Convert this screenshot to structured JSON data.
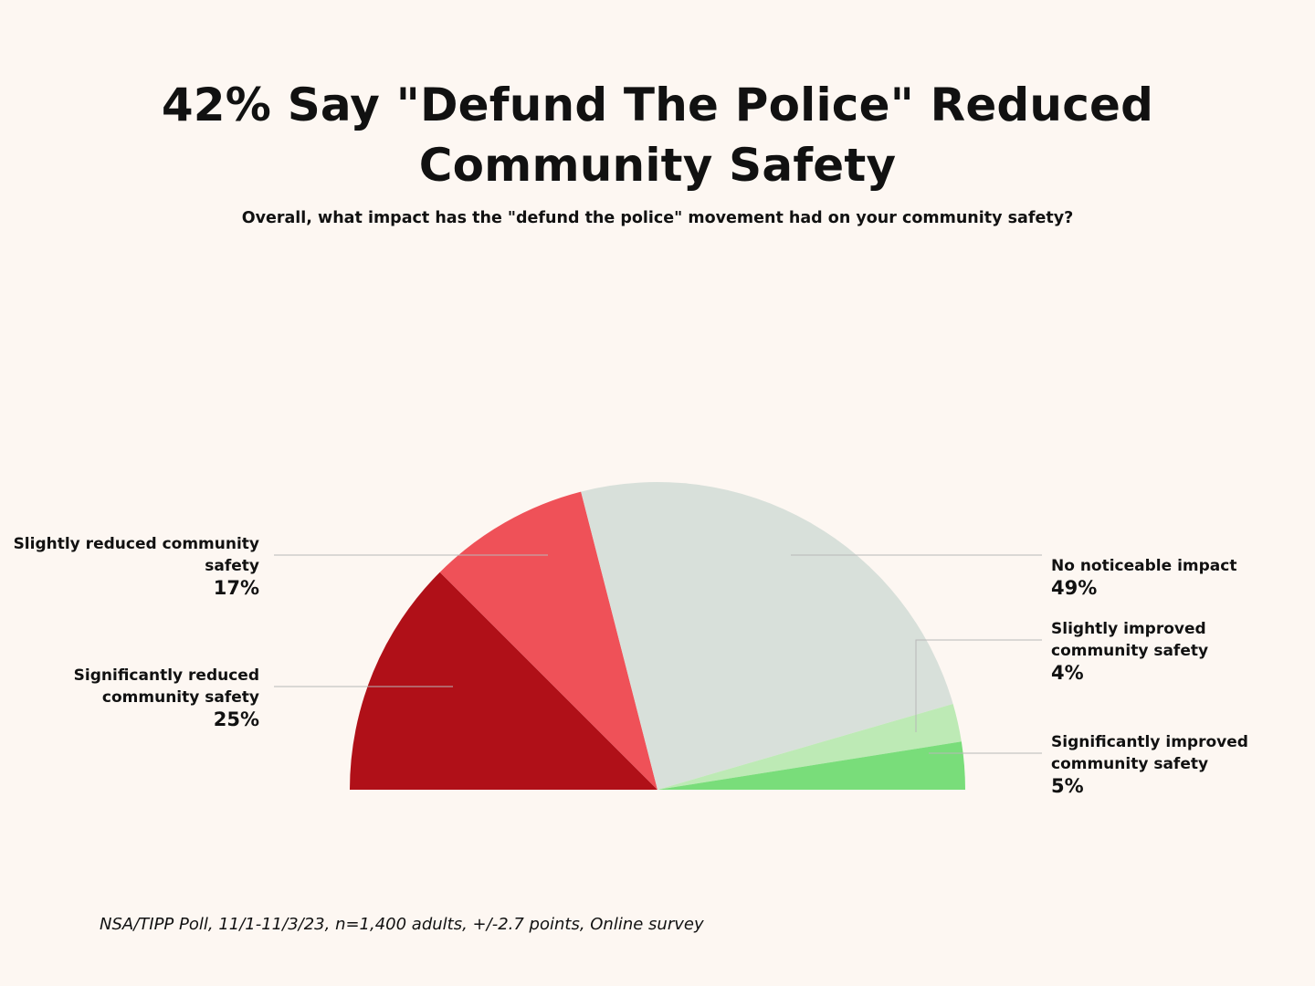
{
  "title": "42% Say \"Defund The Police\" Reduced Community Safety",
  "subtitle": "Overall, what impact has the \"defund the police\" movement had on your community safety?",
  "source": "NSA/TIPP Poll, 11/1-11/3/23, n=1,400 adults, +/-2.7 points,  Online survey",
  "chart_data": {
    "type": "pie",
    "style": "semicircle",
    "title": "42% Say \"Defund The Police\" Reduced Community Safety",
    "subtitle": "Overall, what impact has the \"defund the police\" movement had on your community safety?",
    "slices": [
      {
        "name": "Significantly reduced community safety",
        "value": 25,
        "label": "25%",
        "color": "#b01018"
      },
      {
        "name": "Slightly reduced community safety",
        "value": 17,
        "label": "17%",
        "color": "#ef5158"
      },
      {
        "name": "No noticeable impact",
        "value": 49,
        "label": "49%",
        "color": "#d8e0da"
      },
      {
        "name": "Slightly improved community safety",
        "value": 4,
        "label": "4%",
        "color": "#bdeab5"
      },
      {
        "name": "Significantly improved community safety",
        "value": 5,
        "label": "5%",
        "color": "#79dd7a"
      }
    ]
  }
}
